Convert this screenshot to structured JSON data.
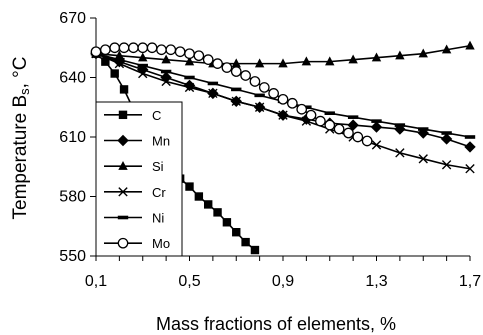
{
  "chart_data": {
    "type": "line",
    "title": "",
    "xlabel": "Mass fractions of elements, %",
    "ylabel": {
      "main": "Temperature B",
      "subscript": "s",
      "unit": ", °C"
    },
    "xlim": [
      0.1,
      1.7
    ],
    "ylim": [
      550,
      670
    ],
    "x_ticks": [
      0.1,
      0.5,
      0.9,
      1.3,
      1.7
    ],
    "x_tick_labels": [
      "0,1",
      "0,5",
      "0,9",
      "1,3",
      "1,7"
    ],
    "y_ticks": [
      550,
      580,
      610,
      640,
      670
    ],
    "y_tick_labels": [
      "550",
      "580",
      "610",
      "640",
      "670"
    ],
    "grid": false,
    "legend_position": "left-center",
    "series": [
      {
        "name": "C",
        "marker": "square",
        "x": [
          0.1,
          0.14,
          0.18,
          0.22,
          0.26,
          0.3,
          0.34,
          0.38,
          0.42,
          0.46,
          0.5,
          0.54,
          0.58,
          0.62,
          0.66,
          0.7,
          0.74,
          0.78
        ],
        "y": [
          652,
          648,
          642,
          634,
          624,
          613,
          604,
          599,
          594,
          589,
          585,
          580,
          576,
          572,
          567,
          562,
          557,
          553
        ]
      },
      {
        "name": "Mn",
        "marker": "diamond",
        "x": [
          0.1,
          0.2,
          0.3,
          0.4,
          0.5,
          0.6,
          0.7,
          0.8,
          0.9,
          1.0,
          1.1,
          1.2,
          1.3,
          1.4,
          1.5,
          1.6,
          1.7
        ],
        "y": [
          652,
          648,
          644,
          640,
          636,
          632,
          628,
          625,
          621,
          619,
          617,
          616,
          615,
          614,
          612,
          609,
          605
        ]
      },
      {
        "name": "Si",
        "marker": "triangle",
        "x": [
          0.1,
          0.2,
          0.3,
          0.4,
          0.5,
          0.6,
          0.7,
          0.8,
          0.9,
          1.0,
          1.1,
          1.2,
          1.3,
          1.4,
          1.5,
          1.6,
          1.7
        ],
        "y": [
          652,
          651,
          650,
          649,
          648,
          647,
          647,
          647,
          647,
          648,
          648,
          649,
          650,
          651,
          652,
          654,
          656
        ]
      },
      {
        "name": "Cr",
        "marker": "x",
        "x": [
          0.1,
          0.2,
          0.3,
          0.4,
          0.5,
          0.6,
          0.7,
          0.8,
          0.9,
          1.0,
          1.1,
          1.2,
          1.3,
          1.4,
          1.5,
          1.6,
          1.7
        ],
        "y": [
          652,
          647,
          642,
          638,
          635,
          632,
          628,
          625,
          621,
          618,
          614,
          610,
          606,
          602,
          599,
          596,
          594
        ]
      },
      {
        "name": "Ni",
        "marker": "dash",
        "x": [
          0.1,
          0.2,
          0.3,
          0.4,
          0.5,
          0.6,
          0.7,
          0.8,
          0.9,
          1.0,
          1.1,
          1.2,
          1.3,
          1.4,
          1.5,
          1.6,
          1.7
        ],
        "y": [
          652,
          649,
          646,
          643,
          640,
          637,
          634,
          631,
          628,
          625,
          622,
          620,
          618,
          616,
          614,
          612,
          610
        ]
      },
      {
        "name": "Mo",
        "marker": "circle",
        "x": [
          0.1,
          0.14,
          0.18,
          0.22,
          0.26,
          0.3,
          0.34,
          0.38,
          0.42,
          0.46,
          0.5,
          0.54,
          0.58,
          0.62,
          0.66,
          0.7,
          0.74,
          0.78,
          0.82,
          0.86,
          0.9,
          0.94,
          0.98,
          1.02,
          1.06,
          1.1,
          1.14,
          1.18,
          1.22,
          1.26
        ],
        "y": [
          653,
          654,
          655,
          655,
          655,
          655,
          655,
          654,
          654,
          653,
          652,
          651,
          649,
          647,
          645,
          643,
          641,
          638,
          635,
          632,
          629,
          627,
          624,
          621,
          618,
          616,
          614,
          612,
          610,
          608
        ]
      }
    ]
  }
}
